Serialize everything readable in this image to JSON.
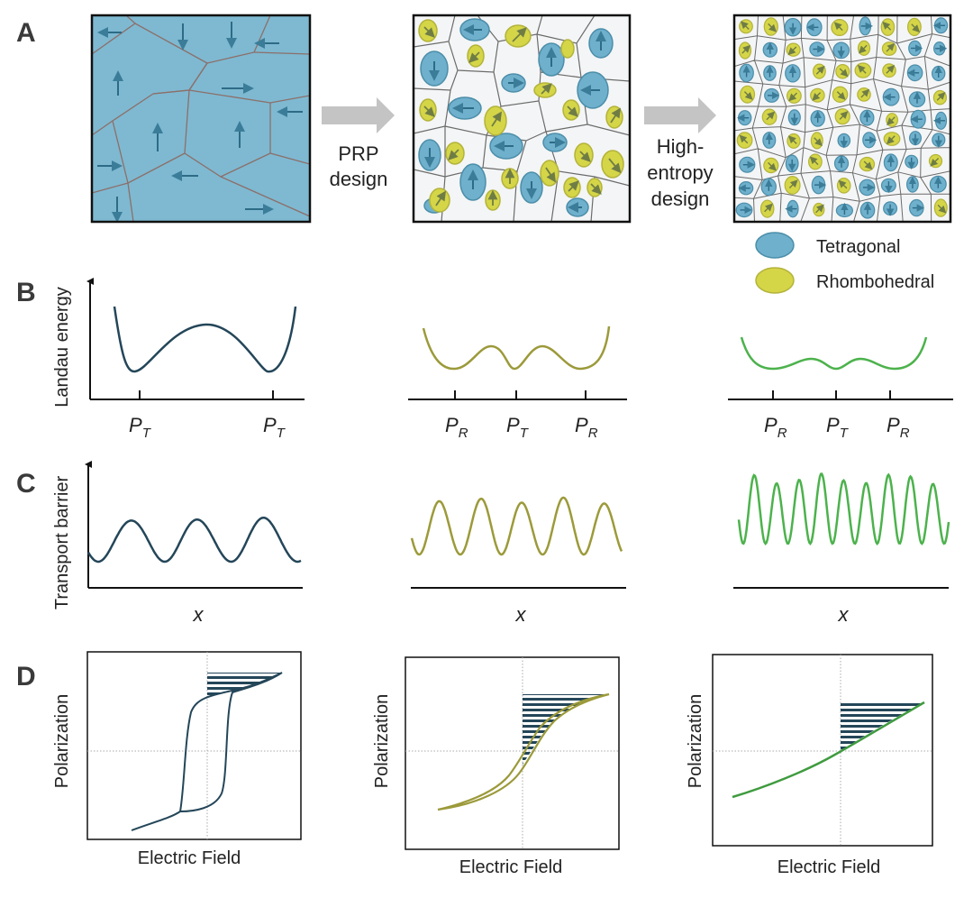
{
  "panels": {
    "a": {
      "label": "A"
    },
    "b": {
      "label": "B"
    },
    "c": {
      "label": "C"
    },
    "d": {
      "label": "D"
    }
  },
  "arrows": {
    "first": {
      "line1": "PRP",
      "line2": "design"
    },
    "second": {
      "line1": "High-",
      "line2": "entropy",
      "line3": "design"
    }
  },
  "legend": {
    "tetragonal": "Tetragonal",
    "rhombohedral": "Rhombohedral"
  },
  "axis_labels": {
    "landau_energy": "Landau energy",
    "transport_barrier": "Transport barrier",
    "x": "x",
    "polarization": "Polarization",
    "electric_field": "Electric Field"
  },
  "tick_labels": {
    "t": {
      "main": "P",
      "sub": "T"
    },
    "r": {
      "main": "P",
      "sub": "R"
    }
  },
  "colors": {
    "tetragonal_fill": "#6fb0cc",
    "tetragonal_stroke": "#4b8eaa",
    "rhombohedral_fill": "#d5d548",
    "rhombohedral_stroke": "#b3b33a",
    "domain_fill": "#7eb9d1",
    "arrow_gray": "#c4c4c4",
    "curve_dark": "#244659",
    "curve_olive": "#9c9a3a",
    "curve_green": "#4cb24c"
  }
}
